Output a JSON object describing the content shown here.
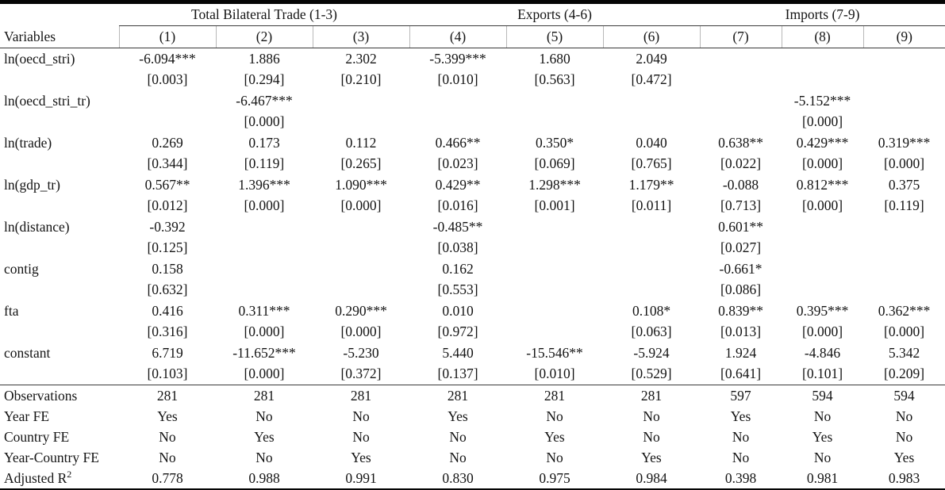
{
  "table": {
    "variables_header": "Variables",
    "groups": [
      {
        "label": "Total Bilateral Trade (1-3)",
        "span": 3
      },
      {
        "label": "Exports (4-6)",
        "span": 3
      },
      {
        "label": "Imports (7-9)",
        "span": 3
      }
    ],
    "columns": [
      "(1)",
      "(2)",
      "(3)",
      "(4)",
      "(5)",
      "(6)",
      "(7)",
      "(8)",
      "(9)"
    ],
    "rows": [
      {
        "label": "ln(oecd_stri)",
        "coefs": [
          "-6.094***",
          "1.886",
          "2.302",
          "-5.399***",
          "1.680",
          "2.049",
          "",
          "",
          ""
        ],
        "pvals": [
          "[0.003]",
          "[0.294]",
          "[0.210]",
          "[0.010]",
          "[0.563]",
          "[0.472]",
          "",
          "",
          ""
        ]
      },
      {
        "label": "ln(oecd_stri_tr)",
        "coefs": [
          "",
          "-6.467***",
          "",
          "",
          "",
          "",
          "",
          "-5.152***",
          ""
        ],
        "pvals": [
          "",
          "[0.000]",
          "",
          "",
          "",
          "",
          "",
          "[0.000]",
          ""
        ]
      },
      {
        "label": "ln(trade)",
        "coefs": [
          "0.269",
          "0.173",
          "0.112",
          "0.466**",
          "0.350*",
          "0.040",
          "0.638**",
          "0.429***",
          "0.319***"
        ],
        "pvals": [
          "[0.344]",
          "[0.119]",
          "[0.265]",
          "[0.023]",
          "[0.069]",
          "[0.765]",
          "[0.022]",
          "[0.000]",
          "[0.000]"
        ]
      },
      {
        "label": "ln(gdp_tr)",
        "coefs": [
          "0.567**",
          "1.396***",
          "1.090***",
          "0.429**",
          "1.298***",
          "1.179**",
          "-0.088",
          "0.812***",
          "0.375"
        ],
        "pvals": [
          "[0.012]",
          "[0.000]",
          "[0.000]",
          "[0.016]",
          "[0.001]",
          "[0.011]",
          "[0.713]",
          "[0.000]",
          "[0.119]"
        ]
      },
      {
        "label": "ln(distance)",
        "coefs": [
          "-0.392",
          "",
          "",
          "-0.485**",
          "",
          "",
          "0.601**",
          "",
          ""
        ],
        "pvals": [
          "[0.125]",
          "",
          "",
          "[0.038]",
          "",
          "",
          "[0.027]",
          "",
          ""
        ]
      },
      {
        "label": "contig",
        "coefs": [
          "0.158",
          "",
          "",
          "0.162",
          "",
          "",
          "-0.661*",
          "",
          ""
        ],
        "pvals": [
          "[0.632]",
          "",
          "",
          "[0.553]",
          "",
          "",
          "[0.086]",
          "",
          ""
        ]
      },
      {
        "label": "fta",
        "coefs": [
          "0.416",
          "0.311***",
          "0.290***",
          "0.010",
          "",
          "0.108*",
          "0.839**",
          "0.395***",
          "0.362***"
        ],
        "pvals": [
          "[0.316]",
          "[0.000]",
          "[0.000]",
          "[0.972]",
          "",
          "[0.063]",
          "[0.013]",
          "[0.000]",
          "[0.000]"
        ]
      },
      {
        "label": "constant",
        "coefs": [
          "6.719",
          "-11.652***",
          "-5.230",
          "5.440",
          "-15.546**",
          "-5.924",
          "1.924",
          "-4.846",
          "5.342"
        ],
        "pvals": [
          "[0.103]",
          "[0.000]",
          "[0.372]",
          "[0.137]",
          "[0.010]",
          "[0.529]",
          "[0.641]",
          "[0.101]",
          "[0.209]"
        ]
      }
    ],
    "footer": [
      {
        "label": "Observations",
        "sup": "",
        "values": [
          "281",
          "281",
          "281",
          "281",
          "281",
          "281",
          "597",
          "594",
          "594"
        ]
      },
      {
        "label": "Year FE",
        "sup": "",
        "values": [
          "Yes",
          "No",
          "No",
          "Yes",
          "No",
          "No",
          "Yes",
          "No",
          "No"
        ]
      },
      {
        "label": "Country FE",
        "sup": "",
        "values": [
          "No",
          "Yes",
          "No",
          "No",
          "Yes",
          "No",
          "No",
          "Yes",
          "No"
        ]
      },
      {
        "label": "Year-Country FE",
        "sup": "",
        "values": [
          "No",
          "No",
          "Yes",
          "No",
          "No",
          "Yes",
          "No",
          "No",
          "Yes"
        ]
      },
      {
        "label": "Adjusted R",
        "sup": "2",
        "values": [
          "0.778",
          "0.988",
          "0.991",
          "0.830",
          "0.975",
          "0.984",
          "0.398",
          "0.981",
          "0.983"
        ]
      }
    ]
  }
}
